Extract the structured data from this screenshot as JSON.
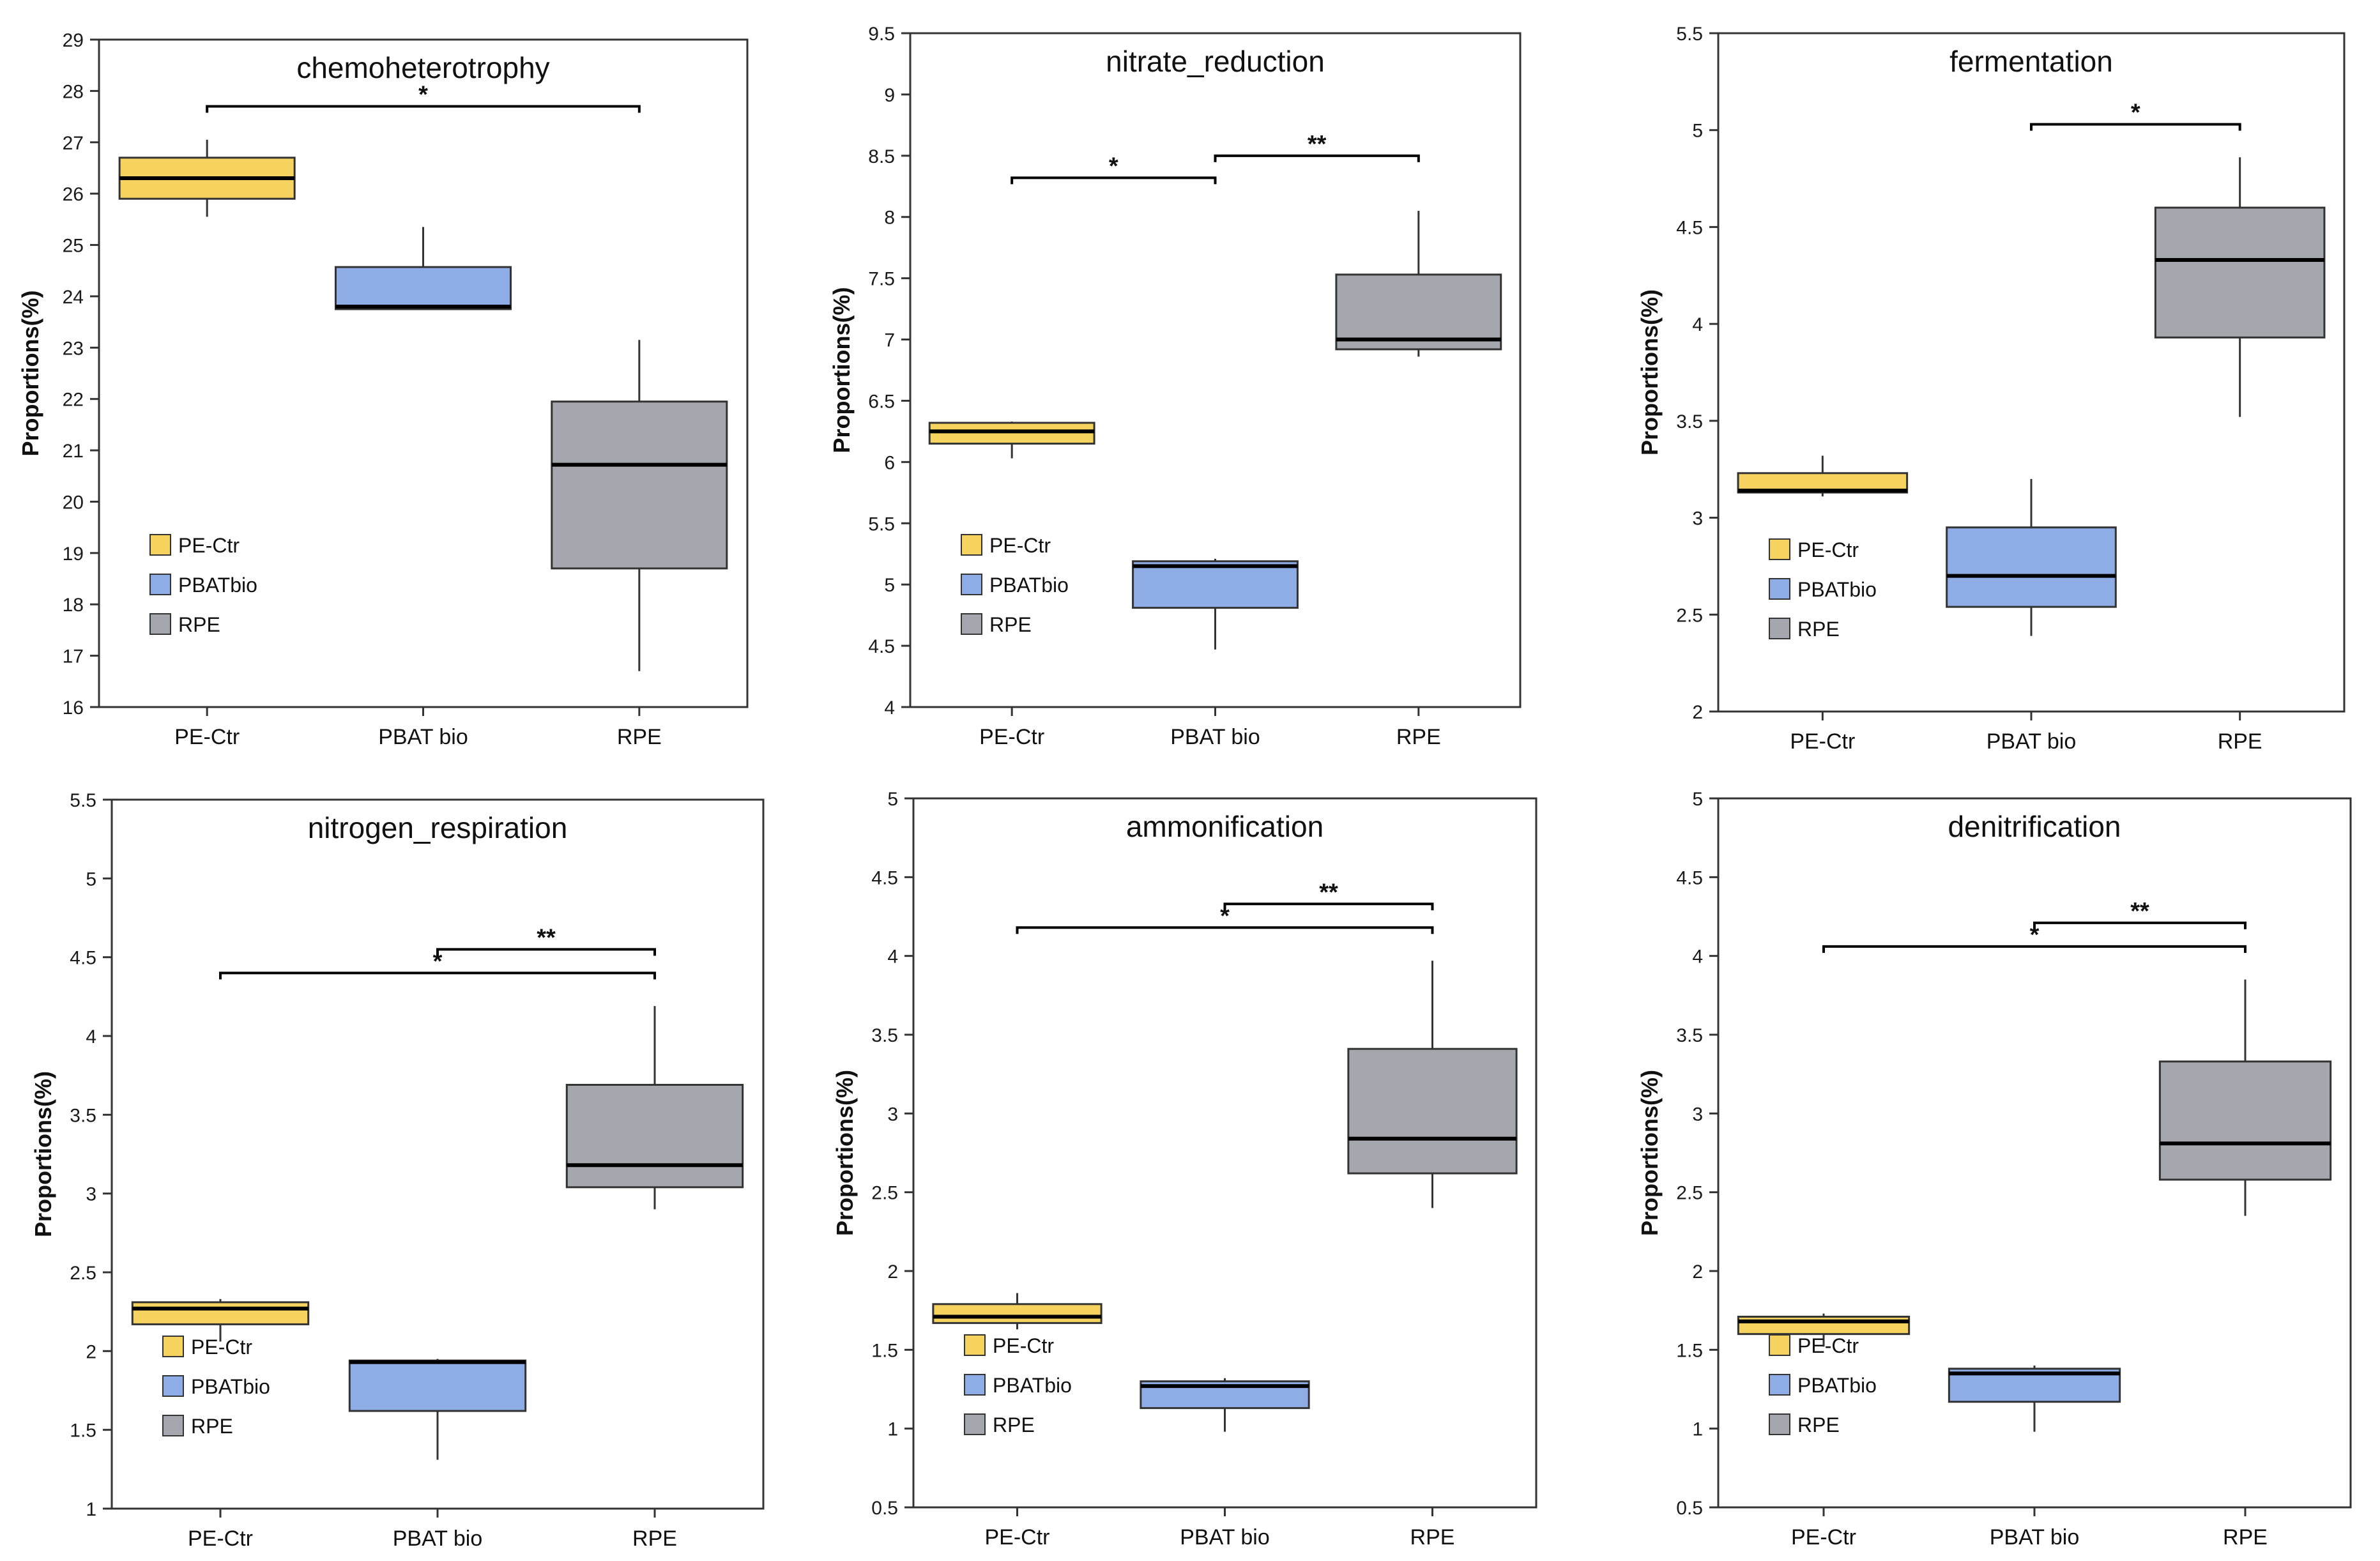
{
  "figure": {
    "y_axis_label": "Proportions(%)",
    "legend": [
      {
        "name": "PE-Ctr",
        "color": "#F5D35E"
      },
      {
        "name": "PBATbio",
        "color": "#8EACE6"
      },
      {
        "name": "RPE",
        "color": "#A4A7AD"
      }
    ],
    "box_stroke_color": "#333333"
  },
  "chart_data": [
    {
      "type": "boxplot",
      "title": "chemoheterotrophy",
      "ylabel": "Proportions(%)",
      "ylim": [
        16,
        29
      ],
      "yticks": [
        "16",
        "17",
        "18",
        "19",
        "20",
        "21",
        "22",
        "23",
        "24",
        "25",
        "26",
        "27",
        "28",
        "29"
      ],
      "categories": [
        "PE-Ctr",
        "PBAT bio",
        "RPE"
      ],
      "series": [
        {
          "name": "PE-Ctr",
          "min": 25.55,
          "q1": 25.9,
          "median": 26.3,
          "q3": 26.7,
          "max": 27.05
        },
        {
          "name": "PBATbio",
          "min": 23.75,
          "q1": 23.75,
          "median": 23.8,
          "q3": 24.57,
          "max": 25.35
        },
        {
          "name": "RPE",
          "min": 16.7,
          "q1": 18.7,
          "median": 20.72,
          "q3": 21.95,
          "max": 23.15
        }
      ],
      "significance": [
        {
          "from": 0,
          "to": 2,
          "y": 27.7,
          "label": "*"
        }
      ],
      "legend_position": "bottom-left"
    },
    {
      "type": "boxplot",
      "title": "nitrate_reduction",
      "ylabel": "Proportions(%)",
      "ylim": [
        4,
        9.5
      ],
      "yticks": [
        "4",
        "4.5",
        "5",
        "5.5",
        "6",
        "6.5",
        "7",
        "7.5",
        "8",
        "8.5",
        "9",
        "9.5"
      ],
      "categories": [
        "PE-Ctr",
        "PBAT bio",
        "RPE"
      ],
      "series": [
        {
          "name": "PE-Ctr",
          "min": 6.03,
          "q1": 6.15,
          "median": 6.25,
          "q3": 6.32,
          "max": 6.33
        },
        {
          "name": "PBATbio",
          "min": 4.47,
          "q1": 4.81,
          "median": 5.15,
          "q3": 5.19,
          "max": 5.21
        },
        {
          "name": "RPE",
          "min": 6.86,
          "q1": 6.92,
          "median": 7.0,
          "q3": 7.53,
          "max": 8.05
        }
      ],
      "significance": [
        {
          "from": 0,
          "to": 1,
          "y": 8.32,
          "label": "*"
        },
        {
          "from": 1,
          "to": 2,
          "y": 8.5,
          "label": "**"
        }
      ],
      "legend_position": "bottom-left"
    },
    {
      "type": "boxplot",
      "title": "fermentation",
      "ylabel": "Proportions(%)",
      "ylim": [
        2,
        5.5
      ],
      "yticks": [
        "2",
        "2.5",
        "3",
        "3.5",
        "4",
        "4.5",
        "5",
        "5.5"
      ],
      "categories": [
        "PE-Ctr",
        "PBAT bio",
        "RPE"
      ],
      "series": [
        {
          "name": "PE-Ctr",
          "min": 3.11,
          "q1": 3.13,
          "median": 3.14,
          "q3": 3.23,
          "max": 3.32
        },
        {
          "name": "PBATbio",
          "min": 2.39,
          "q1": 2.54,
          "median": 2.7,
          "q3": 2.95,
          "max": 3.2
        },
        {
          "name": "RPE",
          "min": 3.52,
          "q1": 3.93,
          "median": 4.33,
          "q3": 4.6,
          "max": 4.86
        }
      ],
      "significance": [
        {
          "from": 1,
          "to": 2,
          "y": 5.03,
          "label": "*"
        }
      ],
      "legend_position": "bottom-left"
    },
    {
      "type": "boxplot",
      "title": "nitrogen_respiration",
      "ylabel": "Proportions(%)",
      "ylim": [
        1,
        5.5
      ],
      "yticks": [
        "1",
        "1.5",
        "2",
        "2.5",
        "3",
        "3.5",
        "4",
        "4.5",
        "5",
        "5.5"
      ],
      "categories": [
        "PE-Ctr",
        "PBAT bio",
        "RPE"
      ],
      "series": [
        {
          "name": "PE-Ctr",
          "min": 2.06,
          "q1": 2.17,
          "median": 2.27,
          "q3": 2.31,
          "max": 2.33
        },
        {
          "name": "PBATbio",
          "min": 1.31,
          "q1": 1.62,
          "median": 1.93,
          "q3": 1.94,
          "max": 1.95
        },
        {
          "name": "RPE",
          "min": 2.9,
          "q1": 3.04,
          "median": 3.18,
          "q3": 3.69,
          "max": 4.19
        }
      ],
      "significance": [
        {
          "from": 0,
          "to": 2,
          "y": 4.4,
          "label": "*"
        },
        {
          "from": 1,
          "to": 2,
          "y": 4.55,
          "label": "**"
        }
      ],
      "legend_position": "bottom-left"
    },
    {
      "type": "boxplot",
      "title": "ammonification",
      "ylabel": "Proportions(%)",
      "ylim": [
        0.5,
        5
      ],
      "yticks": [
        "0.5",
        "1",
        "1.5",
        "2",
        "2.5",
        "3",
        "3.5",
        "4",
        "4.5",
        "5"
      ],
      "categories": [
        "PE-Ctr",
        "PBAT bio",
        "RPE"
      ],
      "series": [
        {
          "name": "PE-Ctr",
          "min": 1.63,
          "q1": 1.67,
          "median": 1.71,
          "q3": 1.79,
          "max": 1.86
        },
        {
          "name": "PBATbio",
          "min": 0.98,
          "q1": 1.13,
          "median": 1.27,
          "q3": 1.3,
          "max": 1.32
        },
        {
          "name": "RPE",
          "min": 2.4,
          "q1": 2.62,
          "median": 2.84,
          "q3": 3.41,
          "max": 3.97
        }
      ],
      "significance": [
        {
          "from": 0,
          "to": 2,
          "y": 4.18,
          "label": "*"
        },
        {
          "from": 1,
          "to": 2,
          "y": 4.33,
          "label": "**"
        }
      ],
      "legend_position": "bottom-left"
    },
    {
      "type": "boxplot",
      "title": "denitrification",
      "ylabel": "Proportions(%)",
      "ylim": [
        0.5,
        5
      ],
      "yticks": [
        "0.5",
        "1",
        "1.5",
        "2",
        "2.5",
        "3",
        "3.5",
        "4",
        "4.5",
        "5"
      ],
      "categories": [
        "PE-Ctr",
        "PBAT bio",
        "RPE"
      ],
      "series": [
        {
          "name": "PE-Ctr",
          "min": 1.52,
          "q1": 1.6,
          "median": 1.68,
          "q3": 1.71,
          "max": 1.73
        },
        {
          "name": "PBATbio",
          "min": 0.98,
          "q1": 1.17,
          "median": 1.35,
          "q3": 1.38,
          "max": 1.4
        },
        {
          "name": "RPE",
          "min": 2.35,
          "q1": 2.58,
          "median": 2.81,
          "q3": 3.33,
          "max": 3.85
        }
      ],
      "significance": [
        {
          "from": 0,
          "to": 2,
          "y": 4.06,
          "label": "*"
        },
        {
          "from": 1,
          "to": 2,
          "y": 4.21,
          "label": "**"
        }
      ],
      "legend_position": "bottom-left"
    }
  ]
}
